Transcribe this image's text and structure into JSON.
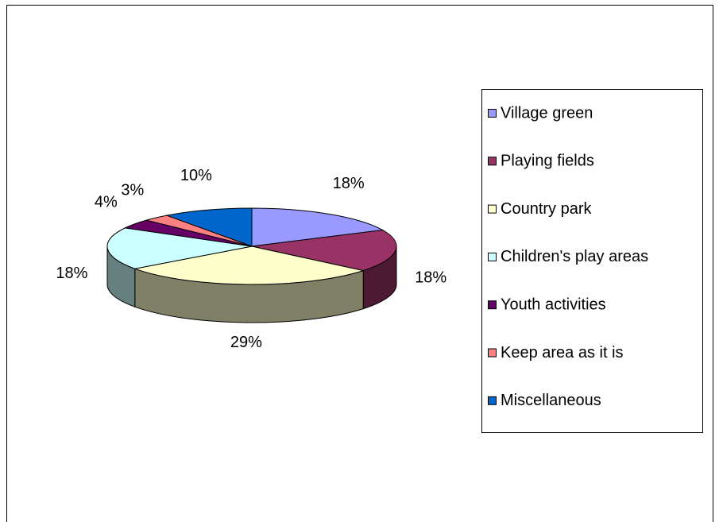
{
  "chart_data": {
    "type": "pie3d",
    "categories": [
      "Village green",
      "Playing fields",
      "Country park",
      "Children's play areas",
      "Youth activities",
      "Keep area as it is",
      "Miscellaneous"
    ],
    "values": [
      18,
      18,
      29,
      18,
      4,
      3,
      10
    ],
    "value_labels": [
      "18%",
      "18%",
      "29%",
      "18%",
      "4%",
      "3%",
      "10%"
    ],
    "colors": [
      "#9999ff",
      "#993366",
      "#ffffcc",
      "#ccffff",
      "#660066",
      "#ff8080",
      "#0066cc"
    ],
    "legend": "right"
  }
}
